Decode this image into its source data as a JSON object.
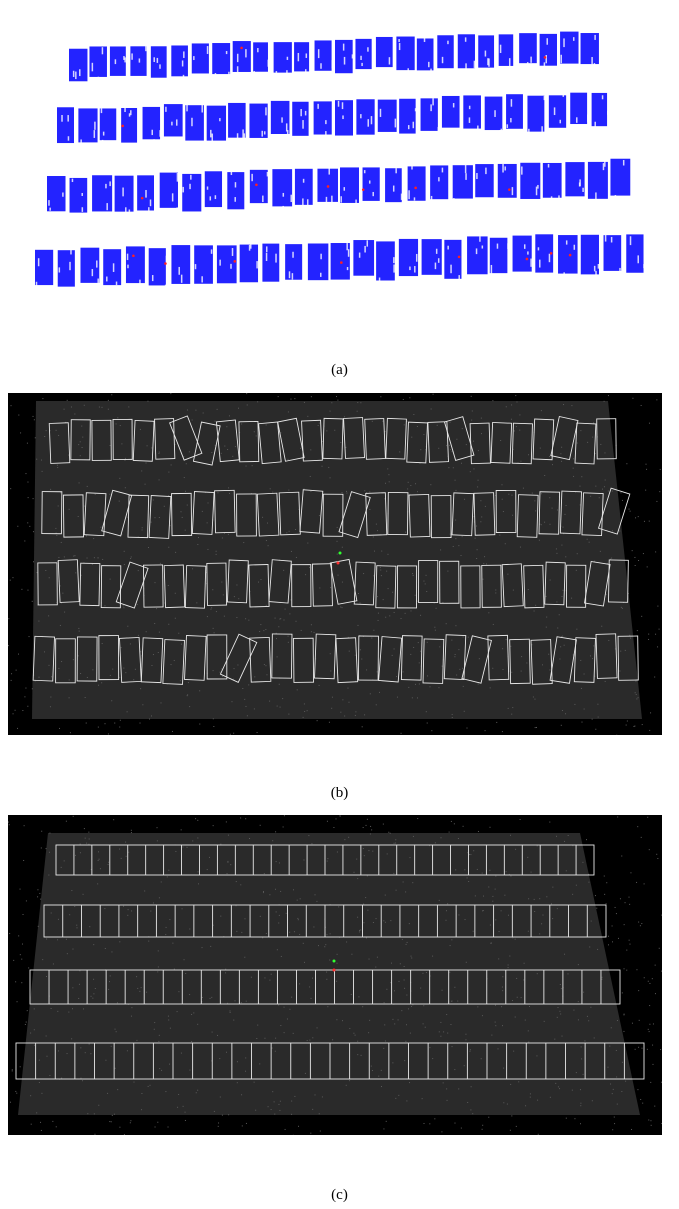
{
  "figure": {
    "panels": [
      {
        "id": "a",
        "caption": "(a)",
        "point_color": "#1010ff",
        "highlight_color": "#ff2020",
        "background": "#ffffff"
      },
      {
        "id": "b",
        "caption": "(b)",
        "box_color": "#e8e8e8",
        "background": "#000000"
      },
      {
        "id": "c",
        "caption": "(c)",
        "box_color": "#e8e8e8",
        "background": "#000000"
      }
    ]
  }
}
